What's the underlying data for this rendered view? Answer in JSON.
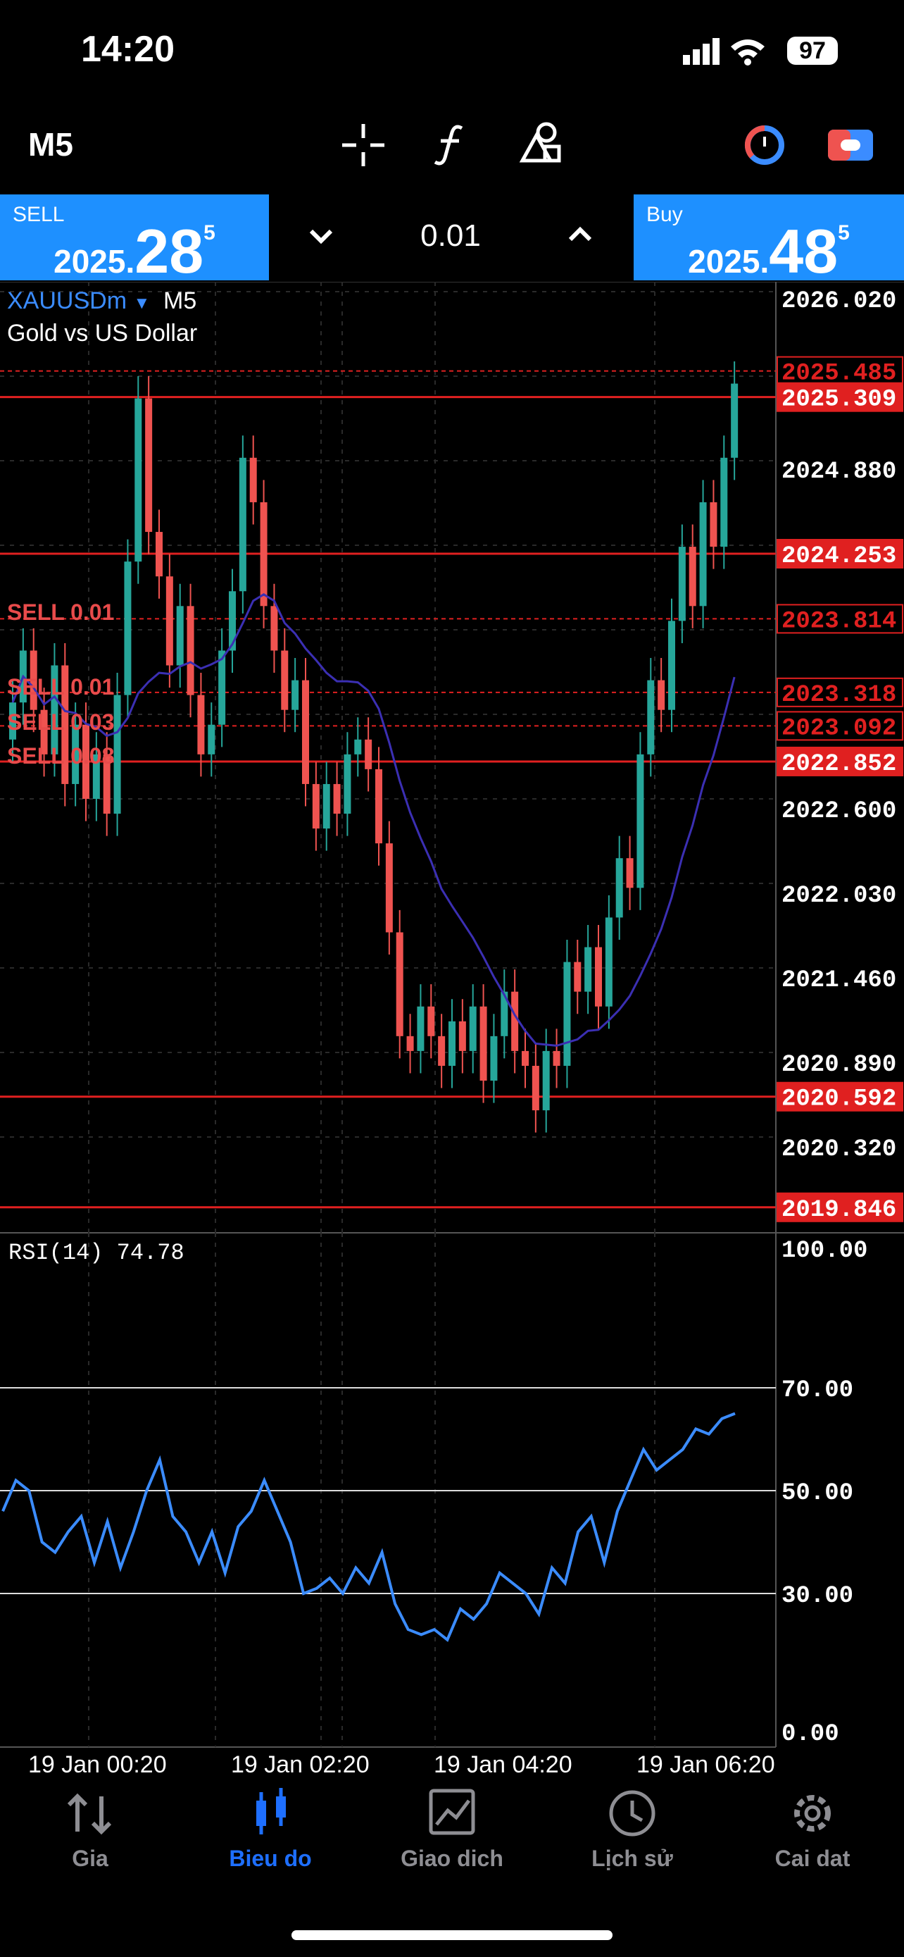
{
  "status_bar": {
    "time": "14:20",
    "battery": "97"
  },
  "toolbar": {
    "timeframe": "M5",
    "crosshair_icon": "crosshair-icon",
    "indicators_icon": "function-icon",
    "objects_icon": "shapes-icon",
    "account_icon": "account-icon",
    "trade_icon": "trade-icon"
  },
  "trade_panel": {
    "sell_label": "SELL",
    "sell_small": "2025.",
    "sell_big": "28",
    "sell_sup": "5",
    "buy_label": "Buy",
    "buy_small": "2025.",
    "buy_big": "48",
    "buy_sup": "5",
    "lot": "0.01",
    "decrease_icon": "chevron-down-icon",
    "increase_icon": "chevron-up-icon"
  },
  "chart": {
    "symbol": "XAUUSDm",
    "timeframe": "M5",
    "description": "Gold vs US Dollar",
    "price_axis": [
      "2026.020",
      "2024.880",
      "2022.600",
      "2022.030",
      "2021.460",
      "2020.890",
      "2020.320"
    ],
    "price_boxes": [
      {
        "label": "2025.485",
        "style": "outline"
      },
      {
        "label": "2025.309",
        "style": "filled"
      },
      {
        "label": "2024.253",
        "style": "filled"
      },
      {
        "label": "2023.814",
        "style": "outline"
      },
      {
        "label": "2023.318",
        "style": "outline"
      },
      {
        "label": "2023.092",
        "style": "outline"
      },
      {
        "label": "2022.852",
        "style": "filled"
      },
      {
        "label": "2020.592",
        "style": "filled"
      },
      {
        "label": "2019.846",
        "style": "filled"
      }
    ],
    "orders": [
      "SELL 0.01",
      "SELL 0.01",
      "SELL 0.03",
      "SELL 0.08"
    ],
    "time_labels": [
      "19 Jan 00:20",
      "19 Jan 02:20",
      "19 Jan 04:20",
      "19 Jan 06:20"
    ],
    "colors": {
      "bull": "#26a69a",
      "bear": "#ef5350",
      "ma": "#3b2fb3",
      "rsi": "#3b8cff",
      "level": "#e02020"
    }
  },
  "rsi": {
    "label": "RSI(14) 74.78",
    "axis": [
      "100.00",
      "70.00",
      "50.00",
      "30.00",
      "0.00"
    ],
    "values": [
      56,
      62,
      60,
      50,
      48,
      52,
      55,
      46,
      54,
      45,
      52,
      60,
      66,
      55,
      52,
      46,
      52,
      44,
      53,
      56,
      62,
      56,
      50,
      40,
      41,
      43,
      40,
      45,
      42,
      48,
      38,
      33,
      32,
      33,
      31,
      37,
      35,
      38,
      44,
      42,
      40,
      36,
      45,
      42,
      52,
      55,
      46,
      56,
      62,
      68,
      64,
      66,
      68,
      72,
      71,
      74,
      75
    ]
  },
  "chart_data": {
    "type": "line",
    "title": "XAUUSDm M5 RSI(14)",
    "x": [
      "19 Jan 00:20",
      "19 Jan 02:20",
      "19 Jan 04:20",
      "19 Jan 06:20"
    ],
    "series": [
      {
        "name": "RSI(14)",
        "last": 74.78
      }
    ],
    "ylim": [
      0,
      100
    ]
  },
  "bottom_nav": [
    {
      "label": "Gia",
      "icon": "quotes-icon",
      "active": false
    },
    {
      "label": "Bieu do",
      "icon": "chart-icon",
      "active": true
    },
    {
      "label": "Giao dich",
      "icon": "trade-icon",
      "active": false
    },
    {
      "label": "Lịch sử",
      "icon": "history-icon",
      "active": false
    },
    {
      "label": "Cai dat",
      "icon": "settings-icon",
      "active": false
    }
  ]
}
